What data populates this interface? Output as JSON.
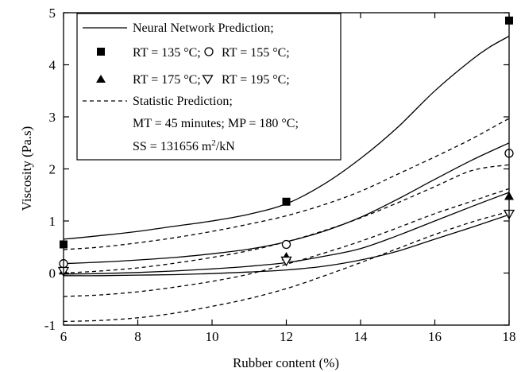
{
  "chart_data": {
    "type": "line",
    "xlabel": "Rubber content (%)",
    "ylabel": "Viscosity (Pa.s)",
    "xlim": [
      6,
      18
    ],
    "ylim": [
      -1,
      5
    ],
    "x_ticks": [
      6,
      8,
      10,
      12,
      14,
      16,
      18
    ],
    "y_ticks": [
      -1,
      0,
      1,
      2,
      3,
      4,
      5
    ],
    "grid": false,
    "legend_position": "top-left",
    "legend": {
      "nn_label": "Neural Network Prediction;",
      "rt135_label": "RT = 135 °C;",
      "rt155_label": "RT = 155 °C;",
      "rt175_label": "RT = 175 °C;",
      "rt195_label": "RT = 195 °C;",
      "stat_label": "Statistic Prediction;",
      "cond1": "MT = 45 minutes; MP = 180 °C;",
      "cond2_prefix": "SS = 131656 m",
      "cond2_sup": "2",
      "cond2_suffix": "/kN"
    },
    "measured": [
      {
        "name": "RT = 135 °C",
        "marker": "filled-square",
        "x": [
          6,
          12,
          18
        ],
        "y": [
          0.55,
          1.37,
          4.85
        ]
      },
      {
        "name": "RT = 155 °C",
        "marker": "open-circle",
        "x": [
          6,
          12,
          18
        ],
        "y": [
          0.18,
          0.55,
          2.3
        ]
      },
      {
        "name": "RT = 175 °C",
        "marker": "filled-triangle",
        "x": [
          6,
          12,
          18
        ],
        "y": [
          0.05,
          0.32,
          1.48
        ]
      },
      {
        "name": "RT = 195 °C",
        "marker": "open-triangle-down",
        "x": [
          6,
          12,
          18
        ],
        "y": [
          0.03,
          0.23,
          1.13
        ]
      }
    ],
    "neural_network_prediction": [
      {
        "x": [
          6,
          7,
          8,
          9,
          10,
          11,
          12,
          13,
          14,
          15,
          16,
          17,
          17.5,
          18
        ],
        "y": [
          0.65,
          0.72,
          0.8,
          0.9,
          1.0,
          1.13,
          1.33,
          1.7,
          2.2,
          2.8,
          3.5,
          4.1,
          4.35,
          4.55
        ]
      },
      {
        "x": [
          6,
          7,
          8,
          9,
          10,
          11,
          12,
          13,
          14,
          15,
          16,
          17,
          18
        ],
        "y": [
          0.18,
          0.21,
          0.25,
          0.3,
          0.37,
          0.46,
          0.6,
          0.8,
          1.07,
          1.42,
          1.8,
          2.17,
          2.5
        ]
      },
      {
        "x": [
          6,
          7,
          8,
          9,
          10,
          11,
          12,
          13,
          14,
          15,
          16,
          17,
          18
        ],
        "y": [
          -0.02,
          -0.01,
          0.01,
          0.04,
          0.08,
          0.13,
          0.2,
          0.32,
          0.47,
          0.72,
          1.0,
          1.28,
          1.55
        ]
      },
      {
        "x": [
          6,
          7,
          8,
          9,
          10,
          11,
          12,
          13,
          14,
          15,
          16,
          17,
          18
        ],
        "y": [
          -0.05,
          -0.05,
          -0.04,
          -0.03,
          -0.01,
          0.02,
          0.06,
          0.13,
          0.25,
          0.42,
          0.65,
          0.88,
          1.12
        ]
      }
    ],
    "statistic_prediction": [
      {
        "x": [
          6,
          7,
          8,
          9,
          10,
          11,
          12,
          13,
          14,
          15,
          16,
          17,
          18
        ],
        "y": [
          0.45,
          0.5,
          0.58,
          0.68,
          0.8,
          0.94,
          1.1,
          1.31,
          1.57,
          1.9,
          2.23,
          2.58,
          2.97
        ]
      },
      {
        "x": [
          6,
          7,
          8,
          9,
          10,
          11,
          12,
          13,
          14,
          15,
          16,
          17,
          18
        ],
        "y": [
          0.0,
          0.04,
          0.1,
          0.19,
          0.3,
          0.43,
          0.6,
          0.81,
          1.06,
          1.35,
          1.66,
          1.97,
          2.08
        ]
      },
      {
        "x": [
          6,
          7,
          8,
          9,
          10,
          11,
          12,
          13,
          14,
          15,
          16,
          17,
          18
        ],
        "y": [
          -0.45,
          -0.42,
          -0.36,
          -0.27,
          -0.16,
          -0.02,
          0.17,
          0.38,
          0.61,
          0.87,
          1.14,
          1.38,
          1.62
        ]
      },
      {
        "x": [
          6,
          7,
          8,
          9,
          10,
          11,
          12,
          13,
          14,
          15,
          16,
          17,
          18
        ],
        "y": [
          -0.93,
          -0.91,
          -0.86,
          -0.77,
          -0.64,
          -0.49,
          -0.3,
          -0.06,
          0.2,
          0.47,
          0.74,
          0.98,
          1.18
        ]
      }
    ]
  }
}
